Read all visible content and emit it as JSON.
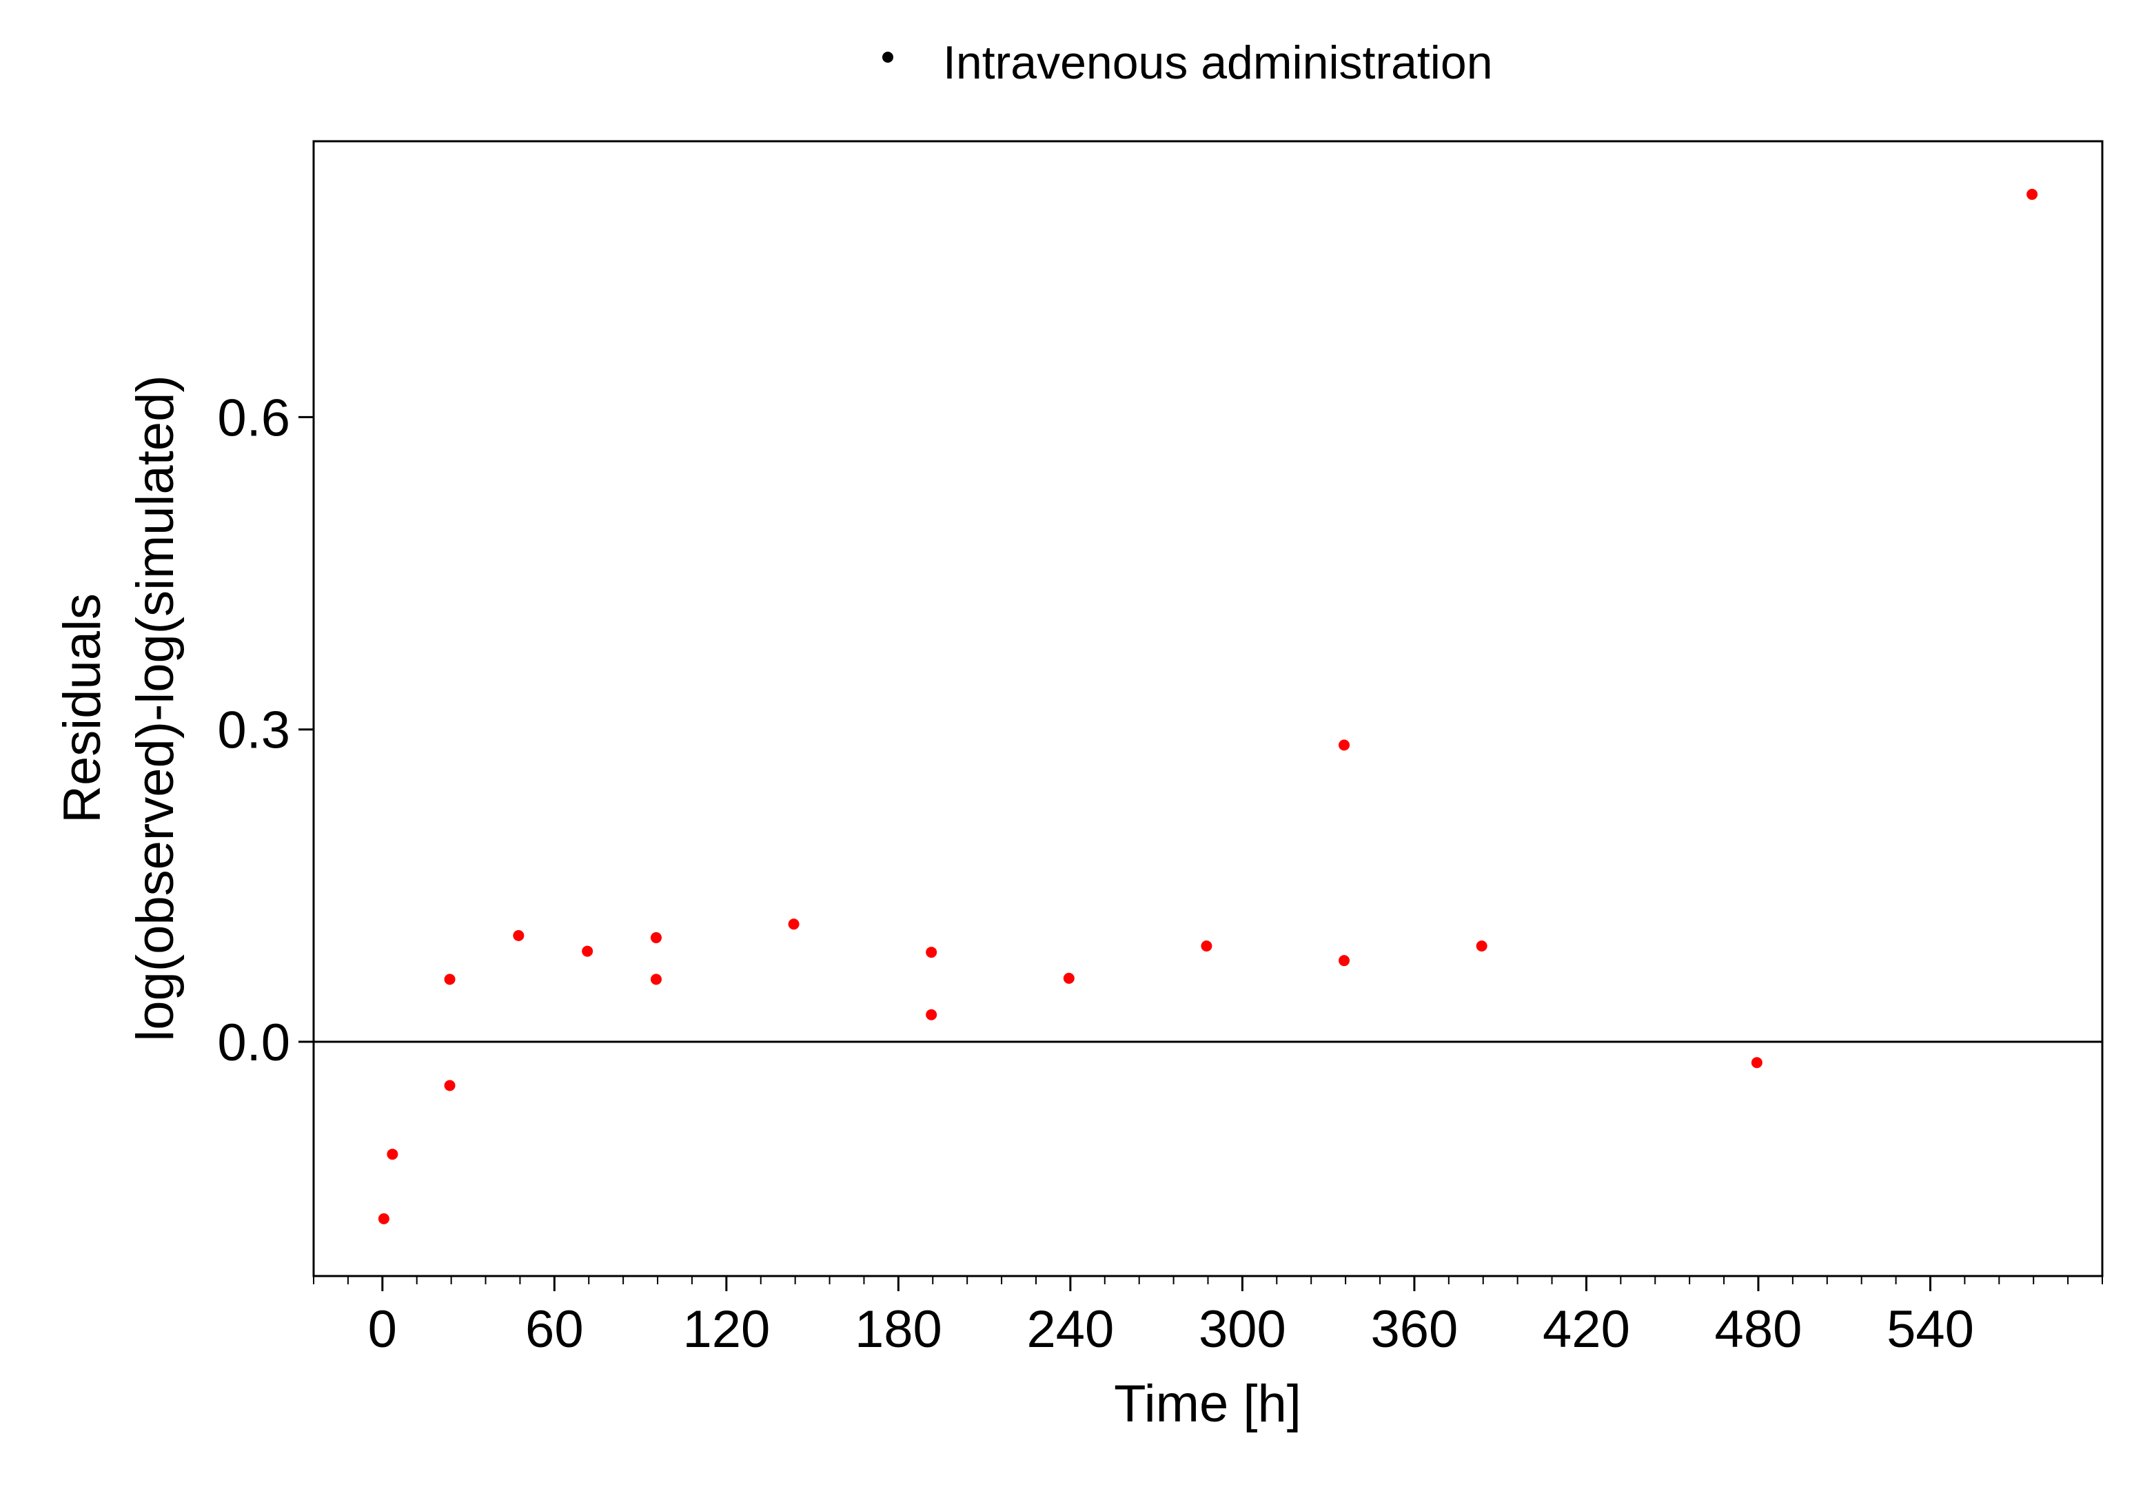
{
  "chart_data": {
    "type": "scatter",
    "title": "",
    "legend": {
      "placement": "top",
      "entries": [
        {
          "label": "Intravenous administration",
          "color": "#000000"
        }
      ]
    },
    "xlabel": "Time [h]",
    "ylabel_lines": [
      "Residuals",
      "log(observed)-log(simulated)"
    ],
    "xlim": [
      -24,
      600
    ],
    "ylim": [
      -0.225,
      0.865
    ],
    "x_ticks": [
      0,
      60,
      120,
      180,
      240,
      300,
      360,
      420,
      480,
      540
    ],
    "x_minor_step": 12,
    "y_ticks": [
      0.0,
      0.3,
      0.6
    ],
    "y_tick_labels": [
      "0.0",
      "0.3",
      "0.6"
    ],
    "reference_line_y": 0,
    "grid": false,
    "point_color": "#ff0000",
    "series": [
      {
        "name": "Intravenous administration",
        "points": [
          {
            "x": 0.5,
            "y": -0.17
          },
          {
            "x": 3.5,
            "y": -0.108
          },
          {
            "x": 23.5,
            "y": -0.042
          },
          {
            "x": 23.5,
            "y": 0.06
          },
          {
            "x": 47.5,
            "y": 0.102
          },
          {
            "x": 71.5,
            "y": 0.087
          },
          {
            "x": 95.5,
            "y": 0.1
          },
          {
            "x": 95.5,
            "y": 0.06
          },
          {
            "x": 143.5,
            "y": 0.113
          },
          {
            "x": 191.5,
            "y": 0.086
          },
          {
            "x": 191.5,
            "y": 0.026
          },
          {
            "x": 239.5,
            "y": 0.061
          },
          {
            "x": 287.5,
            "y": 0.092
          },
          {
            "x": 335.5,
            "y": 0.285
          },
          {
            "x": 335.5,
            "y": 0.078
          },
          {
            "x": 383.5,
            "y": 0.092
          },
          {
            "x": 479.5,
            "y": -0.02
          },
          {
            "x": 575.5,
            "y": 0.814
          }
        ]
      }
    ]
  }
}
